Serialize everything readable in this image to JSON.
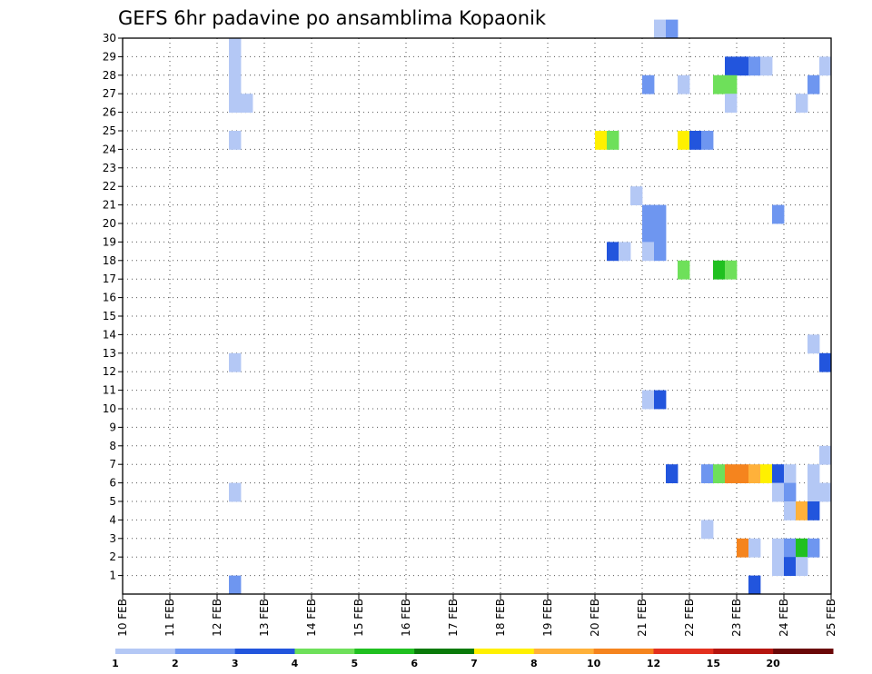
{
  "chart_data": {
    "type": "heatmap",
    "title": "GEFS 6hr padavine po ansamblima Kopaonik",
    "x_tick_labels": [
      "10 FEB",
      "11 FEB",
      "12 FEB",
      "13 FEB",
      "14 FEB",
      "15 FEB",
      "16 FEB",
      "17 FEB",
      "18 FEB",
      "19 FEB",
      "20 FEB",
      "21 FEB",
      "22 FEB",
      "23 FEB",
      "24 FEB",
      "25 FEB"
    ],
    "x_range_days": [
      0,
      15
    ],
    "y_tick_labels": [
      1,
      2,
      3,
      4,
      5,
      6,
      7,
      8,
      9,
      10,
      11,
      12,
      13,
      14,
      15,
      16,
      17,
      18,
      19,
      20,
      21,
      22,
      23,
      24,
      25,
      26,
      27,
      28,
      29,
      30
    ],
    "y_range": [
      0,
      30
    ],
    "grid": true,
    "legend_placement": "bottom",
    "levels": [
      1,
      2,
      3,
      4,
      5,
      6,
      7,
      8,
      10,
      12,
      15,
      20
    ],
    "level_colors": [
      "#b4c8f5",
      "#6e96f0",
      "#2255dd",
      "#6ee05a",
      "#20c020",
      "#0a7a0a",
      "#fff000",
      "#ffb13a",
      "#f5841e",
      "#e3301e",
      "#b5150f",
      "#6a0808"
    ],
    "cells": [
      {
        "day": 11.25,
        "member": 30,
        "bin": 1
      },
      {
        "day": 11.5,
        "member": 30,
        "bin": 2
      },
      {
        "day": 2.25,
        "member": 29,
        "bin": 1
      },
      {
        "day": 2.25,
        "member": 28,
        "bin": 1
      },
      {
        "day": 12.75,
        "member": 28,
        "bin": 3
      },
      {
        "day": 13.0,
        "member": 28,
        "bin": 3
      },
      {
        "day": 13.25,
        "member": 28,
        "bin": 2
      },
      {
        "day": 13.5,
        "member": 28,
        "bin": 1
      },
      {
        "day": 14.75,
        "member": 28,
        "bin": 1
      },
      {
        "day": 2.25,
        "member": 27,
        "bin": 1
      },
      {
        "day": 11.0,
        "member": 27,
        "bin": 2
      },
      {
        "day": 11.75,
        "member": 27,
        "bin": 1
      },
      {
        "day": 12.5,
        "member": 27,
        "bin": 4
      },
      {
        "day": 12.75,
        "member": 27,
        "bin": 4
      },
      {
        "day": 14.5,
        "member": 27,
        "bin": 2
      },
      {
        "day": 2.25,
        "member": 26,
        "bin": 1
      },
      {
        "day": 2.5,
        "member": 26,
        "bin": 1
      },
      {
        "day": 12.75,
        "member": 26,
        "bin": 1
      },
      {
        "day": 14.25,
        "member": 26,
        "bin": 1
      },
      {
        "day": 2.25,
        "member": 24,
        "bin": 1
      },
      {
        "day": 10.0,
        "member": 24,
        "bin": 7
      },
      {
        "day": 10.25,
        "member": 24,
        "bin": 4
      },
      {
        "day": 11.75,
        "member": 24,
        "bin": 7
      },
      {
        "day": 12.0,
        "member": 24,
        "bin": 3
      },
      {
        "day": 12.25,
        "member": 24,
        "bin": 2
      },
      {
        "day": 10.75,
        "member": 21,
        "bin": 1
      },
      {
        "day": 11.0,
        "member": 20,
        "bin": 2
      },
      {
        "day": 11.25,
        "member": 20,
        "bin": 2
      },
      {
        "day": 13.75,
        "member": 20,
        "bin": 2
      },
      {
        "day": 11.0,
        "member": 19,
        "bin": 2
      },
      {
        "day": 11.25,
        "member": 19,
        "bin": 2
      },
      {
        "day": 10.25,
        "member": 18,
        "bin": 3
      },
      {
        "day": 10.5,
        "member": 18,
        "bin": 1
      },
      {
        "day": 11.0,
        "member": 18,
        "bin": 1
      },
      {
        "day": 11.25,
        "member": 18,
        "bin": 2
      },
      {
        "day": 11.75,
        "member": 17,
        "bin": 4
      },
      {
        "day": 12.5,
        "member": 17,
        "bin": 5
      },
      {
        "day": 12.75,
        "member": 17,
        "bin": 4
      },
      {
        "day": 14.5,
        "member": 13,
        "bin": 1
      },
      {
        "day": 2.25,
        "member": 12,
        "bin": 1
      },
      {
        "day": 14.75,
        "member": 12,
        "bin": 3
      },
      {
        "day": 11.0,
        "member": 10,
        "bin": 1
      },
      {
        "day": 11.25,
        "member": 10,
        "bin": 3
      },
      {
        "day": 14.75,
        "member": 7,
        "bin": 1
      },
      {
        "day": 11.5,
        "member": 6,
        "bin": 3
      },
      {
        "day": 12.25,
        "member": 6,
        "bin": 2
      },
      {
        "day": 12.5,
        "member": 6,
        "bin": 4
      },
      {
        "day": 12.75,
        "member": 6,
        "bin": 9
      },
      {
        "day": 13.0,
        "member": 6,
        "bin": 9
      },
      {
        "day": 13.25,
        "member": 6,
        "bin": 8
      },
      {
        "day": 13.5,
        "member": 6,
        "bin": 7
      },
      {
        "day": 13.75,
        "member": 6,
        "bin": 3
      },
      {
        "day": 14.0,
        "member": 6,
        "bin": 1
      },
      {
        "day": 14.5,
        "member": 6,
        "bin": 1
      },
      {
        "day": 2.25,
        "member": 5,
        "bin": 1
      },
      {
        "day": 13.75,
        "member": 5,
        "bin": 1
      },
      {
        "day": 14.0,
        "member": 5,
        "bin": 2
      },
      {
        "day": 14.5,
        "member": 5,
        "bin": 1
      },
      {
        "day": 14.75,
        "member": 5,
        "bin": 1
      },
      {
        "day": 14.0,
        "member": 4,
        "bin": 1
      },
      {
        "day": 14.25,
        "member": 4,
        "bin": 8
      },
      {
        "day": 14.5,
        "member": 4,
        "bin": 3
      },
      {
        "day": 12.25,
        "member": 3,
        "bin": 1
      },
      {
        "day": 13.0,
        "member": 2,
        "bin": 9
      },
      {
        "day": 13.25,
        "member": 2,
        "bin": 1
      },
      {
        "day": 13.75,
        "member": 2,
        "bin": 1
      },
      {
        "day": 14.0,
        "member": 2,
        "bin": 2
      },
      {
        "day": 14.25,
        "member": 2,
        "bin": 5
      },
      {
        "day": 14.5,
        "member": 2,
        "bin": 2
      },
      {
        "day": 13.75,
        "member": 1,
        "bin": 1
      },
      {
        "day": 14.0,
        "member": 1,
        "bin": 3
      },
      {
        "day": 14.25,
        "member": 1,
        "bin": 1
      },
      {
        "day": 2.25,
        "member": 0,
        "bin": 2
      },
      {
        "day": 13.25,
        "member": 0,
        "bin": 3
      }
    ]
  }
}
